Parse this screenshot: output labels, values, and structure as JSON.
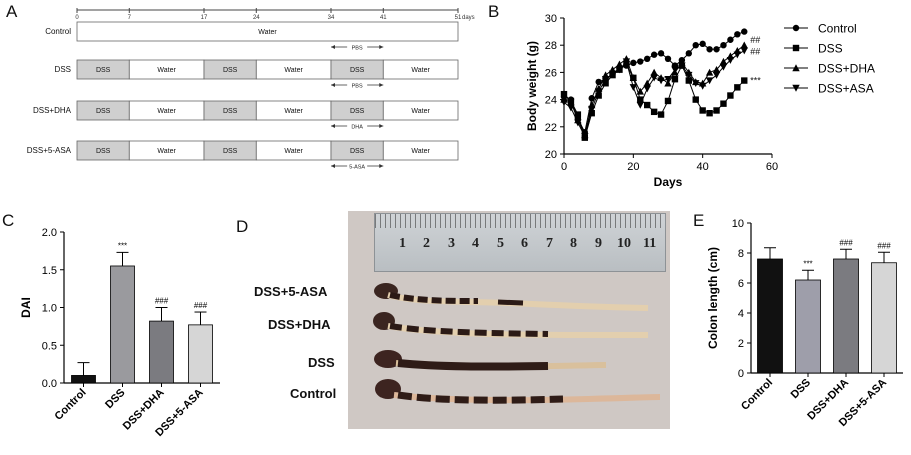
{
  "panel_labels": {
    "a": "A",
    "b": "B",
    "c": "C",
    "d": "D",
    "e": "E"
  },
  "timeline": {
    "axis_ticks": [
      "0",
      "7",
      "17",
      "24",
      "34",
      "41",
      "51"
    ],
    "axis_unit": "days",
    "rows": [
      {
        "label": "Control",
        "segments": [
          {
            "text": "Water",
            "shaded": false
          }
        ],
        "treatment": "PBS"
      },
      {
        "label": "DSS",
        "segments": [
          {
            "text": "DSS",
            "shaded": true
          },
          {
            "text": "Water",
            "shaded": false
          },
          {
            "text": "DSS",
            "shaded": true
          },
          {
            "text": "Water",
            "shaded": false
          },
          {
            "text": "DSS",
            "shaded": true
          },
          {
            "text": "Water",
            "shaded": false
          }
        ],
        "treatment": "PBS"
      },
      {
        "label": "DSS+DHA",
        "segments": [
          {
            "text": "DSS",
            "shaded": true
          },
          {
            "text": "Water",
            "shaded": false
          },
          {
            "text": "DSS",
            "shaded": true
          },
          {
            "text": "Water",
            "shaded": false
          },
          {
            "text": "DSS",
            "shaded": true
          },
          {
            "text": "Water",
            "shaded": false
          }
        ],
        "treatment": "DHA"
      },
      {
        "label": "DSS+5-ASA",
        "segments": [
          {
            "text": "DSS",
            "shaded": true
          },
          {
            "text": "Water",
            "shaded": false
          },
          {
            "text": "DSS",
            "shaded": true
          },
          {
            "text": "Water",
            "shaded": false
          },
          {
            "text": "DSS",
            "shaded": true
          },
          {
            "text": "Water",
            "shaded": false
          }
        ],
        "treatment": "5-ASA"
      }
    ]
  },
  "chart_data": [
    {
      "id": "B",
      "type": "line",
      "xlabel": "Days",
      "ylabel": "Body weight (g)",
      "xlim": [
        0,
        60
      ],
      "ylim": [
        20,
        30
      ],
      "xticks": [
        "0",
        "20",
        "40",
        "60"
      ],
      "yticks": [
        "20",
        "22",
        "24",
        "26",
        "28",
        "30"
      ],
      "x": [
        0,
        2,
        4,
        6,
        8,
        10,
        12,
        14,
        16,
        18,
        20,
        22,
        24,
        26,
        28,
        30,
        32,
        34,
        36,
        38,
        40,
        42,
        44,
        46,
        48,
        50,
        52
      ],
      "series": [
        {
          "name": "Control",
          "marker": "circle",
          "values": [
            24.2,
            24.0,
            22.6,
            21.6,
            24.1,
            25.3,
            25.5,
            25.9,
            26.3,
            26.5,
            26.7,
            26.8,
            27.0,
            27.3,
            27.4,
            27.0,
            26.5,
            26.9,
            27.4,
            28.0,
            28.1,
            27.7,
            27.7,
            28.0,
            28.4,
            28.8,
            29.0
          ],
          "annotation": ""
        },
        {
          "name": "DSS",
          "marker": "square",
          "values": [
            24.4,
            23.9,
            22.9,
            21.2,
            23.0,
            24.3,
            25.2,
            25.8,
            26.2,
            26.6,
            25.6,
            24.0,
            23.6,
            23.1,
            22.9,
            23.9,
            25.5,
            26.5,
            25.4,
            24.0,
            23.2,
            23.0,
            23.2,
            23.7,
            24.3,
            24.9,
            25.4
          ],
          "annotation": "***"
        },
        {
          "name": "DSS+DHA",
          "marker": "triangle-up",
          "values": [
            24.0,
            23.8,
            22.5,
            21.4,
            23.6,
            24.8,
            25.8,
            26.2,
            26.6,
            27.0,
            25.6,
            24.6,
            25.2,
            26.0,
            25.6,
            25.2,
            26.0,
            26.7,
            26.0,
            25.3,
            25.2,
            26.0,
            26.2,
            26.8,
            27.2,
            27.6,
            28.0
          ],
          "annotation": "##"
        },
        {
          "name": "DSS+ASA",
          "marker": "triangle-down",
          "values": [
            23.8,
            23.4,
            22.3,
            21.3,
            23.3,
            24.6,
            25.5,
            25.9,
            26.2,
            26.8,
            24.9,
            23.6,
            24.8,
            25.6,
            25.4,
            25.5,
            26.2,
            26.5,
            25.8,
            25.2,
            25.0,
            25.4,
            25.8,
            26.4,
            26.9,
            27.3,
            27.6
          ],
          "annotation": "##"
        }
      ]
    },
    {
      "id": "C",
      "type": "bar",
      "ylabel": "DAI",
      "ylim": [
        0,
        2.0
      ],
      "yticks": [
        "0.0",
        "0.5",
        "1.0",
        "1.5",
        "2.0"
      ],
      "categories": [
        "Control",
        "DSS",
        "DSS+DHA",
        "DSS+5-ASA"
      ],
      "values": [
        0.1,
        1.55,
        0.82,
        0.77
      ],
      "errors": [
        0.17,
        0.18,
        0.18,
        0.17
      ],
      "annotations": [
        "",
        "***",
        "###",
        "###"
      ],
      "colors": [
        "#111111",
        "#9a9a9e",
        "#7b7b80",
        "#d6d6d6"
      ]
    },
    {
      "id": "E",
      "type": "bar",
      "ylabel": "Colon length (cm)",
      "ylim": [
        0,
        10
      ],
      "yticks": [
        "0",
        "2",
        "4",
        "6",
        "8",
        "10"
      ],
      "categories": [
        "Control",
        "DSS",
        "DSS+DHA",
        "DSS+5-ASA"
      ],
      "values": [
        7.6,
        6.2,
        7.6,
        7.35
      ],
      "errors": [
        0.75,
        0.65,
        0.65,
        0.7
      ],
      "annotations": [
        "",
        "***",
        "###",
        "###"
      ],
      "colors": [
        "#111111",
        "#9e9eaa",
        "#7b7b80",
        "#d6d6d6"
      ]
    }
  ],
  "photo": {
    "ruler_numbers": [
      "1",
      "2",
      "3",
      "4",
      "5",
      "6",
      "7",
      "8",
      "9",
      "10",
      "11"
    ],
    "colon_labels": [
      "DSS+5-ASA",
      "DSS+DHA",
      "DSS",
      "Control"
    ]
  }
}
